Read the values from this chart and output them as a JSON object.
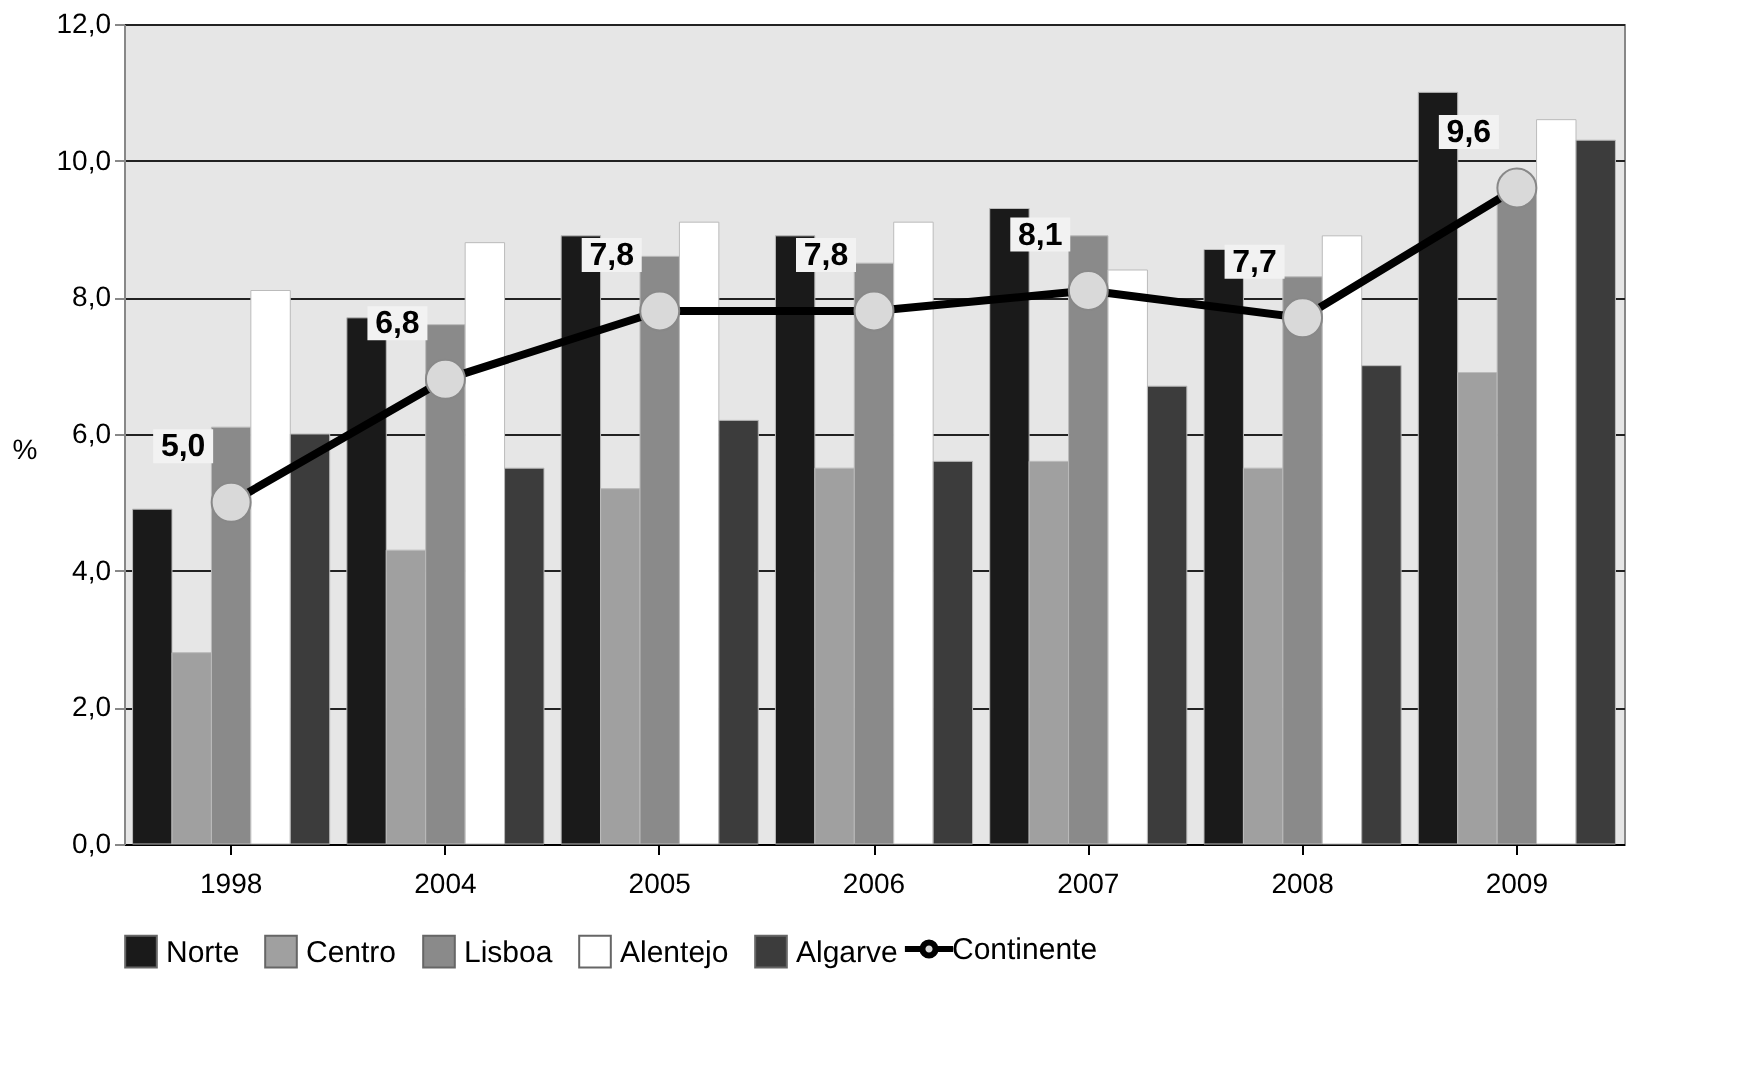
{
  "chart_data": {
    "type": "bar",
    "ylabel": "%",
    "categories": [
      "1998",
      "2004",
      "2005",
      "2006",
      "2007",
      "2008",
      "2009"
    ],
    "series": [
      {
        "name": "Norte",
        "color": "#1a1a1a",
        "values": [
          4.9,
          7.7,
          8.9,
          8.9,
          9.3,
          8.7,
          11.0
        ]
      },
      {
        "name": "Centro",
        "color": "#a0a0a0",
        "values": [
          2.8,
          4.3,
          5.2,
          5.5,
          5.6,
          5.5,
          6.9
        ]
      },
      {
        "name": "Lisboa",
        "color": "#8a8a8a",
        "values": [
          6.1,
          7.6,
          8.6,
          8.5,
          8.9,
          8.3,
          9.5
        ]
      },
      {
        "name": "Alentejo",
        "color": "#ffffff",
        "values": [
          8.1,
          8.8,
          9.1,
          9.1,
          8.4,
          8.9,
          10.6
        ]
      },
      {
        "name": "Algarve",
        "color": "#3c3c3c",
        "values": [
          6.0,
          5.5,
          6.2,
          5.6,
          6.7,
          7.0,
          10.3
        ]
      },
      {
        "name": "Continente",
        "type": "line",
        "color": "#000000",
        "marker": "circle",
        "values": [
          5.0,
          6.8,
          7.8,
          7.8,
          8.1,
          7.7,
          9.6
        ],
        "value_labels": [
          "5,0",
          "6,8",
          "7,8",
          "7,8",
          "8,1",
          "7,7",
          "9,6"
        ]
      }
    ],
    "ylim": [
      0,
      12
    ],
    "yticks": [
      {
        "value": 0,
        "label": "0,0"
      },
      {
        "value": 2,
        "label": "2,0"
      },
      {
        "value": 4,
        "label": "4,0"
      },
      {
        "value": 6,
        "label": "6,0"
      },
      {
        "value": 8,
        "label": "8,0"
      },
      {
        "value": 10,
        "label": "10,0"
      },
      {
        "value": 12,
        "label": "12,0"
      }
    ],
    "grid": "y",
    "legend": "bottom"
  }
}
